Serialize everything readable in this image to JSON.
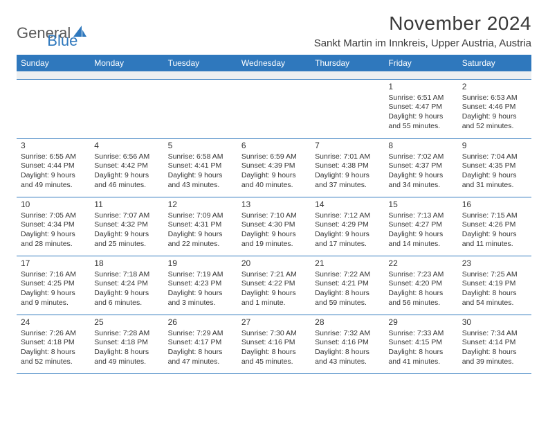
{
  "logo": {
    "general": "General",
    "blue": "Blue"
  },
  "header": {
    "month_title": "November 2024",
    "location": "Sankt Martin im Innkreis, Upper Austria, Austria"
  },
  "weekdays": [
    "Sunday",
    "Monday",
    "Tuesday",
    "Wednesday",
    "Thursday",
    "Friday",
    "Saturday"
  ],
  "colors": {
    "header_bg": "#2f78bd",
    "header_text": "#ffffff",
    "border": "#2f78bd",
    "body_text": "#333333",
    "spacer_bg": "#eceff1",
    "logo_gray": "#5a5a5a",
    "logo_blue": "#2f78bd",
    "background": "#ffffff"
  },
  "typography": {
    "month_title_fontsize": 28,
    "location_fontsize": 15,
    "weekday_fontsize": 12,
    "daynum_fontsize": 12,
    "detail_fontsize": 10.5
  },
  "weeks": [
    [
      null,
      null,
      null,
      null,
      null,
      {
        "n": "1",
        "sunrise": "Sunrise: 6:51 AM",
        "sunset": "Sunset: 4:47 PM",
        "daylight1": "Daylight: 9 hours",
        "daylight2": "and 55 minutes."
      },
      {
        "n": "2",
        "sunrise": "Sunrise: 6:53 AM",
        "sunset": "Sunset: 4:46 PM",
        "daylight1": "Daylight: 9 hours",
        "daylight2": "and 52 minutes."
      }
    ],
    [
      {
        "n": "3",
        "sunrise": "Sunrise: 6:55 AM",
        "sunset": "Sunset: 4:44 PM",
        "daylight1": "Daylight: 9 hours",
        "daylight2": "and 49 minutes."
      },
      {
        "n": "4",
        "sunrise": "Sunrise: 6:56 AM",
        "sunset": "Sunset: 4:42 PM",
        "daylight1": "Daylight: 9 hours",
        "daylight2": "and 46 minutes."
      },
      {
        "n": "5",
        "sunrise": "Sunrise: 6:58 AM",
        "sunset": "Sunset: 4:41 PM",
        "daylight1": "Daylight: 9 hours",
        "daylight2": "and 43 minutes."
      },
      {
        "n": "6",
        "sunrise": "Sunrise: 6:59 AM",
        "sunset": "Sunset: 4:39 PM",
        "daylight1": "Daylight: 9 hours",
        "daylight2": "and 40 minutes."
      },
      {
        "n": "7",
        "sunrise": "Sunrise: 7:01 AM",
        "sunset": "Sunset: 4:38 PM",
        "daylight1": "Daylight: 9 hours",
        "daylight2": "and 37 minutes."
      },
      {
        "n": "8",
        "sunrise": "Sunrise: 7:02 AM",
        "sunset": "Sunset: 4:37 PM",
        "daylight1": "Daylight: 9 hours",
        "daylight2": "and 34 minutes."
      },
      {
        "n": "9",
        "sunrise": "Sunrise: 7:04 AM",
        "sunset": "Sunset: 4:35 PM",
        "daylight1": "Daylight: 9 hours",
        "daylight2": "and 31 minutes."
      }
    ],
    [
      {
        "n": "10",
        "sunrise": "Sunrise: 7:05 AM",
        "sunset": "Sunset: 4:34 PM",
        "daylight1": "Daylight: 9 hours",
        "daylight2": "and 28 minutes."
      },
      {
        "n": "11",
        "sunrise": "Sunrise: 7:07 AM",
        "sunset": "Sunset: 4:32 PM",
        "daylight1": "Daylight: 9 hours",
        "daylight2": "and 25 minutes."
      },
      {
        "n": "12",
        "sunrise": "Sunrise: 7:09 AM",
        "sunset": "Sunset: 4:31 PM",
        "daylight1": "Daylight: 9 hours",
        "daylight2": "and 22 minutes."
      },
      {
        "n": "13",
        "sunrise": "Sunrise: 7:10 AM",
        "sunset": "Sunset: 4:30 PM",
        "daylight1": "Daylight: 9 hours",
        "daylight2": "and 19 minutes."
      },
      {
        "n": "14",
        "sunrise": "Sunrise: 7:12 AM",
        "sunset": "Sunset: 4:29 PM",
        "daylight1": "Daylight: 9 hours",
        "daylight2": "and 17 minutes."
      },
      {
        "n": "15",
        "sunrise": "Sunrise: 7:13 AM",
        "sunset": "Sunset: 4:27 PM",
        "daylight1": "Daylight: 9 hours",
        "daylight2": "and 14 minutes."
      },
      {
        "n": "16",
        "sunrise": "Sunrise: 7:15 AM",
        "sunset": "Sunset: 4:26 PM",
        "daylight1": "Daylight: 9 hours",
        "daylight2": "and 11 minutes."
      }
    ],
    [
      {
        "n": "17",
        "sunrise": "Sunrise: 7:16 AM",
        "sunset": "Sunset: 4:25 PM",
        "daylight1": "Daylight: 9 hours",
        "daylight2": "and 9 minutes."
      },
      {
        "n": "18",
        "sunrise": "Sunrise: 7:18 AM",
        "sunset": "Sunset: 4:24 PM",
        "daylight1": "Daylight: 9 hours",
        "daylight2": "and 6 minutes."
      },
      {
        "n": "19",
        "sunrise": "Sunrise: 7:19 AM",
        "sunset": "Sunset: 4:23 PM",
        "daylight1": "Daylight: 9 hours",
        "daylight2": "and 3 minutes."
      },
      {
        "n": "20",
        "sunrise": "Sunrise: 7:21 AM",
        "sunset": "Sunset: 4:22 PM",
        "daylight1": "Daylight: 9 hours",
        "daylight2": "and 1 minute."
      },
      {
        "n": "21",
        "sunrise": "Sunrise: 7:22 AM",
        "sunset": "Sunset: 4:21 PM",
        "daylight1": "Daylight: 8 hours",
        "daylight2": "and 59 minutes."
      },
      {
        "n": "22",
        "sunrise": "Sunrise: 7:23 AM",
        "sunset": "Sunset: 4:20 PM",
        "daylight1": "Daylight: 8 hours",
        "daylight2": "and 56 minutes."
      },
      {
        "n": "23",
        "sunrise": "Sunrise: 7:25 AM",
        "sunset": "Sunset: 4:19 PM",
        "daylight1": "Daylight: 8 hours",
        "daylight2": "and 54 minutes."
      }
    ],
    [
      {
        "n": "24",
        "sunrise": "Sunrise: 7:26 AM",
        "sunset": "Sunset: 4:18 PM",
        "daylight1": "Daylight: 8 hours",
        "daylight2": "and 52 minutes."
      },
      {
        "n": "25",
        "sunrise": "Sunrise: 7:28 AM",
        "sunset": "Sunset: 4:18 PM",
        "daylight1": "Daylight: 8 hours",
        "daylight2": "and 49 minutes."
      },
      {
        "n": "26",
        "sunrise": "Sunrise: 7:29 AM",
        "sunset": "Sunset: 4:17 PM",
        "daylight1": "Daylight: 8 hours",
        "daylight2": "and 47 minutes."
      },
      {
        "n": "27",
        "sunrise": "Sunrise: 7:30 AM",
        "sunset": "Sunset: 4:16 PM",
        "daylight1": "Daylight: 8 hours",
        "daylight2": "and 45 minutes."
      },
      {
        "n": "28",
        "sunrise": "Sunrise: 7:32 AM",
        "sunset": "Sunset: 4:16 PM",
        "daylight1": "Daylight: 8 hours",
        "daylight2": "and 43 minutes."
      },
      {
        "n": "29",
        "sunrise": "Sunrise: 7:33 AM",
        "sunset": "Sunset: 4:15 PM",
        "daylight1": "Daylight: 8 hours",
        "daylight2": "and 41 minutes."
      },
      {
        "n": "30",
        "sunrise": "Sunrise: 7:34 AM",
        "sunset": "Sunset: 4:14 PM",
        "daylight1": "Daylight: 8 hours",
        "daylight2": "and 39 minutes."
      }
    ]
  ]
}
